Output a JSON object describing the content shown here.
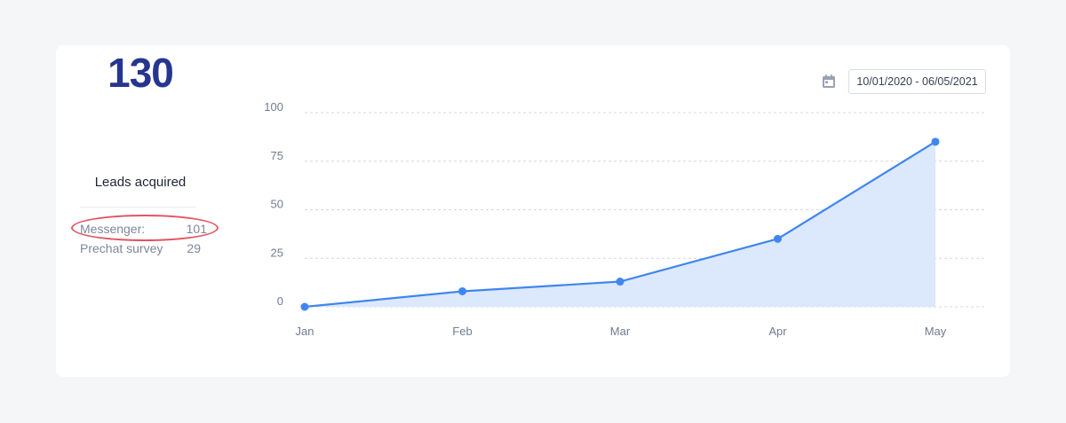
{
  "summary": {
    "total": "130",
    "total_label": "Leads acquired",
    "breakdown": [
      {
        "label": "Messenger:",
        "value": "101",
        "highlighted": true
      },
      {
        "label": "Prechat survey",
        "value": "29",
        "highlighted": false
      }
    ]
  },
  "date_range": {
    "value": "10/01/2020 - 06/05/2021",
    "icon": "calendar-icon"
  },
  "colors": {
    "accent": "#3f86f0",
    "area_fill": "#dce8fb",
    "big_number": "#26368f",
    "highlight": "#e15462"
  },
  "chart_data": {
    "type": "area",
    "categories": [
      "Jan",
      "Feb",
      "Mar",
      "Apr",
      "May"
    ],
    "series": [
      {
        "values": [
          0,
          8,
          13,
          35,
          85
        ]
      }
    ],
    "y_ticks": [
      0,
      25,
      50,
      75,
      100
    ],
    "ylim": [
      0,
      100
    ],
    "grid": true,
    "title": "",
    "xlabel": "",
    "ylabel": ""
  }
}
